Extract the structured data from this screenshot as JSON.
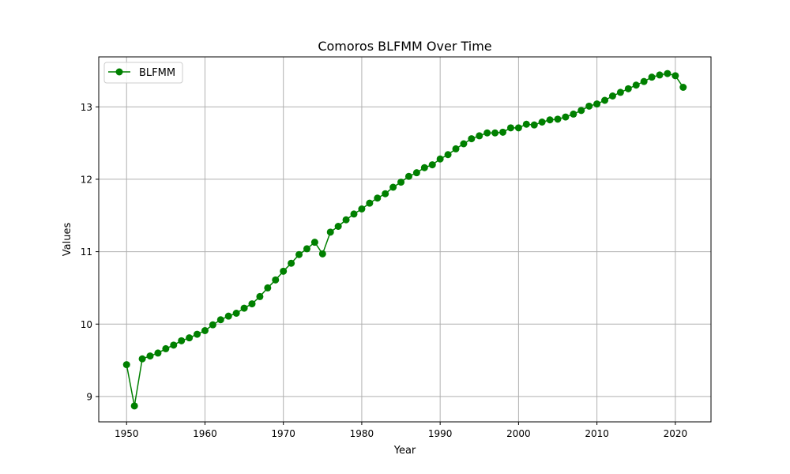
{
  "chart_data": {
    "type": "line",
    "title": "Comoros BLFMM Over Time",
    "xlabel": "Year",
    "ylabel": "Values",
    "xlim": [
      1946.45,
      2024.55
    ],
    "ylim": [
      8.65,
      13.69
    ],
    "xticks": [
      1950,
      1960,
      1970,
      1980,
      1990,
      2000,
      2010,
      2020
    ],
    "yticks": [
      9,
      10,
      11,
      12,
      13
    ],
    "grid": true,
    "legend_position": "top-left",
    "color": "#008000",
    "series": [
      {
        "name": "BLFMM",
        "x": [
          1950,
          1951,
          1952,
          1953,
          1954,
          1955,
          1956,
          1957,
          1958,
          1959,
          1960,
          1961,
          1962,
          1963,
          1964,
          1965,
          1966,
          1967,
          1968,
          1969,
          1970,
          1971,
          1972,
          1973,
          1974,
          1975,
          1976,
          1977,
          1978,
          1979,
          1980,
          1981,
          1982,
          1983,
          1984,
          1985,
          1986,
          1987,
          1988,
          1989,
          1990,
          1991,
          1992,
          1993,
          1994,
          1995,
          1996,
          1997,
          1998,
          1999,
          2000,
          2001,
          2002,
          2003,
          2004,
          2005,
          2006,
          2007,
          2008,
          2009,
          2010,
          2011,
          2012,
          2013,
          2014,
          2015,
          2016,
          2017,
          2018,
          2019,
          2020,
          2021
        ],
        "values": [
          9.44,
          8.87,
          9.52,
          9.56,
          9.6,
          9.66,
          9.71,
          9.77,
          9.81,
          9.86,
          9.91,
          9.99,
          10.06,
          10.11,
          10.15,
          10.22,
          10.28,
          10.38,
          10.5,
          10.61,
          10.73,
          10.84,
          10.96,
          11.04,
          11.13,
          10.97,
          11.27,
          11.35,
          11.44,
          11.52,
          11.59,
          11.67,
          11.74,
          11.8,
          11.89,
          11.96,
          12.04,
          12.09,
          12.16,
          12.2,
          12.28,
          12.34,
          12.42,
          12.49,
          12.56,
          12.6,
          12.64,
          12.64,
          12.65,
          12.71,
          12.71,
          12.76,
          12.75,
          12.79,
          12.82,
          12.83,
          12.86,
          12.9,
          12.95,
          13.01,
          13.04,
          13.09,
          13.15,
          13.2,
          13.25,
          13.3,
          13.35,
          13.41,
          13.44,
          13.46,
          13.43,
          13.27
        ]
      }
    ]
  }
}
